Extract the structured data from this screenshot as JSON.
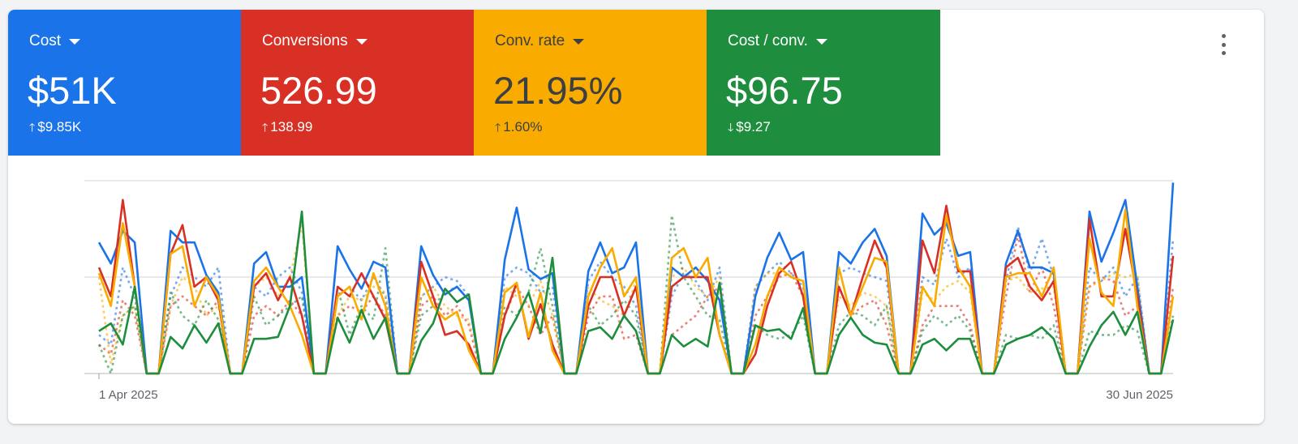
{
  "metrics": [
    {
      "label": "Cost",
      "value": "$51K",
      "delta": "$9.85K",
      "direction": "up",
      "color": "#1a73e8",
      "text_color": "#ffffff"
    },
    {
      "label": "Conversions",
      "value": "526.99",
      "delta": "138.99",
      "direction": "up",
      "color": "#d93025",
      "text_color": "#ffffff"
    },
    {
      "label": "Conv. rate",
      "value": "21.95%",
      "delta": "1.60%",
      "direction": "up",
      "color": "#f9ab00",
      "text_color": "#3c4043"
    },
    {
      "label": "Cost / conv.",
      "value": "$96.75",
      "delta": "$9.27",
      "direction": "down",
      "color": "#1e8e3e",
      "text_color": "#ffffff"
    }
  ],
  "menu_icon": "more-vert-icon",
  "chart_data": {
    "type": "line",
    "title": "",
    "xlabel": "",
    "ylabel": "",
    "x_start": "1 Apr 2025",
    "x_end": "30 Jun 2025",
    "x_tick_labels": [
      "1 Apr 2025",
      "30 Jun 2025"
    ],
    "ylim": [
      0,
      100
    ],
    "y_gridlines": [
      0,
      50,
      100
    ],
    "grid": true,
    "legend": "none",
    "series": [
      {
        "metric": "Cost",
        "style": "solid",
        "color": "#1a73e8",
        "values": [
          68,
          57,
          74,
          68,
          0,
          0,
          74,
          68,
          68,
          51,
          42,
          0,
          0,
          57,
          63,
          45,
          45,
          50,
          0,
          0,
          66,
          54,
          44,
          58,
          55,
          0,
          0,
          66,
          51,
          41,
          45,
          38,
          0,
          0,
          59,
          86,
          54,
          49,
          52,
          0,
          0,
          53,
          68,
          52,
          55,
          68,
          0,
          0,
          55,
          50,
          55,
          48,
          38,
          0,
          0,
          40,
          60,
          73,
          59,
          63,
          0,
          0,
          63,
          57,
          68,
          75,
          61,
          0,
          0,
          83,
          72,
          78,
          61,
          63,
          0,
          0,
          57,
          74,
          55,
          55,
          52,
          0,
          0,
          84,
          58,
          73,
          90,
          45,
          0,
          0,
          99
        ]
      },
      {
        "metric": "Conversions",
        "style": "solid",
        "color": "#d93025",
        "values": [
          55,
          40,
          90,
          45,
          0,
          0,
          62,
          77,
          45,
          50,
          38,
          0,
          0,
          45,
          52,
          38,
          50,
          30,
          0,
          0,
          45,
          40,
          52,
          40,
          28,
          0,
          0,
          58,
          40,
          20,
          22,
          15,
          0,
          0,
          30,
          47,
          18,
          36,
          15,
          0,
          0,
          35,
          50,
          50,
          30,
          45,
          0,
          0,
          45,
          50,
          50,
          50,
          20,
          0,
          0,
          10,
          35,
          52,
          58,
          40,
          0,
          0,
          45,
          30,
          50,
          69,
          55,
          0,
          0,
          69,
          52,
          87,
          53,
          53,
          0,
          0,
          55,
          60,
          45,
          38,
          48,
          0,
          0,
          80,
          40,
          40,
          75,
          40,
          0,
          0,
          61
        ]
      },
      {
        "metric": "Conv. rate",
        "style": "solid",
        "color": "#f9ab00",
        "values": [
          52,
          35,
          78,
          45,
          0,
          0,
          62,
          66,
          35,
          50,
          40,
          0,
          0,
          48,
          55,
          45,
          35,
          20,
          0,
          0,
          40,
          45,
          28,
          52,
          35,
          0,
          0,
          50,
          35,
          28,
          32,
          12,
          0,
          0,
          42,
          47,
          19,
          42,
          12,
          0,
          0,
          40,
          55,
          65,
          40,
          50,
          0,
          0,
          60,
          65,
          50,
          60,
          20,
          0,
          0,
          15,
          40,
          55,
          50,
          48,
          0,
          0,
          55,
          30,
          45,
          60,
          58,
          0,
          0,
          45,
          35,
          82,
          55,
          45,
          0,
          0,
          50,
          52,
          52,
          40,
          55,
          0,
          0,
          70,
          42,
          35,
          85,
          35,
          0,
          0,
          40
        ]
      },
      {
        "metric": "Cost / conv.",
        "style": "solid",
        "color": "#1e8e3e",
        "values": [
          22,
          26,
          15,
          45,
          0,
          0,
          19,
          13,
          25,
          16,
          26,
          0,
          0,
          18,
          18,
          19,
          35,
          84,
          0,
          0,
          29,
          16,
          33,
          18,
          29,
          0,
          0,
          17,
          26,
          44,
          37,
          41,
          0,
          0,
          18,
          29,
          42,
          21,
          60,
          0,
          0,
          22,
          24,
          18,
          30,
          22,
          0,
          0,
          20,
          14,
          18,
          14,
          47,
          0,
          0,
          25,
          22,
          23,
          18,
          34,
          0,
          0,
          20,
          29,
          20,
          16,
          15,
          0,
          0,
          15,
          18,
          12,
          18,
          18,
          0,
          0,
          15,
          18,
          20,
          24,
          18,
          0,
          0,
          14,
          25,
          32,
          20,
          32,
          0,
          0,
          28
        ]
      },
      {
        "metric": "Cost (previous period)",
        "style": "dashed",
        "color": "#1a73e8",
        "values": [
          20,
          15,
          55,
          40,
          0,
          0,
          40,
          55,
          50,
          45,
          55,
          0,
          0,
          45,
          40,
          50,
          55,
          42,
          0,
          0,
          40,
          45,
          38,
          50,
          40,
          0,
          0,
          40,
          45,
          50,
          48,
          40,
          0,
          0,
          50,
          55,
          52,
          42,
          45,
          0,
          0,
          48,
          58,
          50,
          45,
          35,
          0,
          0,
          40,
          52,
          48,
          38,
          55,
          0,
          0,
          45,
          52,
          58,
          52,
          45,
          0,
          0,
          52,
          55,
          52,
          50,
          48,
          0,
          0,
          50,
          46,
          70,
          50,
          55,
          0,
          0,
          48,
          76,
          52,
          70,
          50,
          0,
          0,
          55,
          48,
          55,
          40,
          50,
          0,
          0,
          70
        ]
      },
      {
        "metric": "Conversions (previous period)",
        "style": "dashed",
        "color": "#d93025",
        "values": [
          15,
          10,
          38,
          30,
          0,
          0,
          35,
          40,
          35,
          30,
          38,
          0,
          0,
          30,
          35,
          30,
          38,
          30,
          0,
          0,
          30,
          35,
          32,
          40,
          30,
          0,
          0,
          35,
          40,
          30,
          35,
          25,
          0,
          0,
          30,
          45,
          35,
          20,
          30,
          0,
          0,
          30,
          40,
          40,
          18,
          20,
          0,
          0,
          20,
          25,
          30,
          40,
          45,
          0,
          0,
          30,
          40,
          50,
          52,
          40,
          0,
          0,
          45,
          30,
          35,
          38,
          25,
          0,
          0,
          25,
          35,
          35,
          35,
          25,
          0,
          0,
          40,
          72,
          42,
          55,
          35,
          0,
          0,
          45,
          50,
          48,
          30,
          35,
          0,
          0,
          45
        ]
      },
      {
        "metric": "Conv. rate (previous period)",
        "style": "dashed",
        "color": "#f9ab00",
        "values": [
          50,
          5,
          30,
          35,
          0,
          0,
          35,
          50,
          45,
          30,
          35,
          0,
          0,
          45,
          50,
          40,
          50,
          78,
          0,
          0,
          30,
          40,
          38,
          45,
          42,
          0,
          0,
          40,
          45,
          35,
          30,
          28,
          0,
          0,
          45,
          40,
          35,
          48,
          30,
          0,
          0,
          45,
          38,
          35,
          30,
          48,
          0,
          0,
          50,
          55,
          45,
          40,
          50,
          0,
          0,
          45,
          52,
          52,
          50,
          48,
          0,
          0,
          40,
          35,
          42,
          40,
          35,
          0,
          0,
          42,
          38,
          45,
          48,
          42,
          0,
          0,
          48,
          50,
          42,
          44,
          45,
          0,
          0,
          45,
          48,
          52,
          50,
          52,
          0,
          0,
          40
        ]
      },
      {
        "metric": "Cost / conv. (previous period)",
        "style": "dashed",
        "color": "#1e8e3e",
        "values": [
          15,
          0,
          30,
          35,
          0,
          0,
          42,
          30,
          25,
          38,
          28,
          0,
          0,
          40,
          25,
          30,
          35,
          40,
          0,
          0,
          45,
          20,
          35,
          28,
          65,
          0,
          0,
          30,
          35,
          42,
          45,
          38,
          0,
          0,
          35,
          30,
          42,
          65,
          35,
          0,
          0,
          35,
          25,
          30,
          38,
          30,
          0,
          0,
          82,
          50,
          40,
          30,
          28,
          0,
          0,
          25,
          20,
          18,
          20,
          30,
          0,
          0,
          25,
          32,
          30,
          25,
          35,
          0,
          0,
          22,
          30,
          25,
          30,
          22,
          0,
          0,
          20,
          18,
          20,
          18,
          25,
          0,
          0,
          22,
          20,
          20,
          25,
          22,
          0,
          0,
          30
        ]
      }
    ]
  }
}
